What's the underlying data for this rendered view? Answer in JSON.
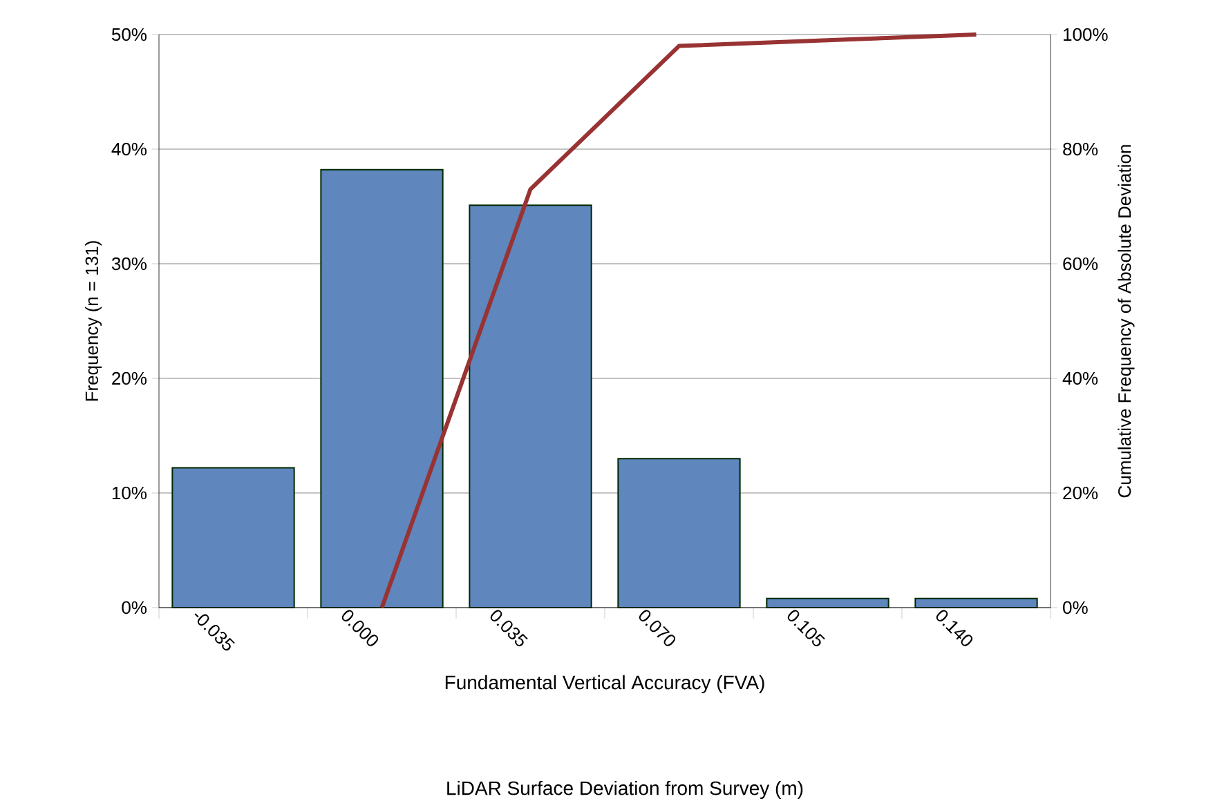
{
  "chart_data": {
    "type": "bar",
    "categories": [
      "-0.035",
      "0.000",
      "0.035",
      "0.070",
      "0.105",
      "0.140"
    ],
    "series": [
      {
        "color": "#5f86bd",
        "values": [
          12.2,
          38.2,
          35.1,
          13.0,
          0.8,
          0.8
        ]
      },
      {
        "type": "line",
        "axis": "y2",
        "color": "#993333",
        "values": [
          null,
          0,
          73,
          98,
          99,
          100
        ]
      }
    ],
    "ylim": [
      0,
      50
    ],
    "yticks": [
      {
        "value": 0,
        "label": "0%"
      },
      {
        "value": 10,
        "label": "10%"
      },
      {
        "value": 20,
        "label": "20%"
      },
      {
        "value": 30,
        "label": "30%"
      },
      {
        "value": 40,
        "label": "40%"
      },
      {
        "value": 50,
        "label": "50%"
      }
    ],
    "y2lim": [
      0,
      100
    ],
    "y2ticks": [
      {
        "value": 0,
        "label": "0%"
      },
      {
        "value": 20,
        "label": "20%"
      },
      {
        "value": 40,
        "label": "40%"
      },
      {
        "value": 60,
        "label": "60%"
      },
      {
        "value": 80,
        "label": "80%"
      },
      {
        "value": 100,
        "label": "100%"
      }
    ],
    "xlabel": "Fundamental Vertical Accuracy (FVA)",
    "annotations": [
      "LiDAR Surface Deviation from Survey (m)"
    ],
    "ylabel": "Frequency (n = 131)",
    "y2label": "Cumulative Frequency of Absolute Deviation",
    "grid": "y"
  }
}
